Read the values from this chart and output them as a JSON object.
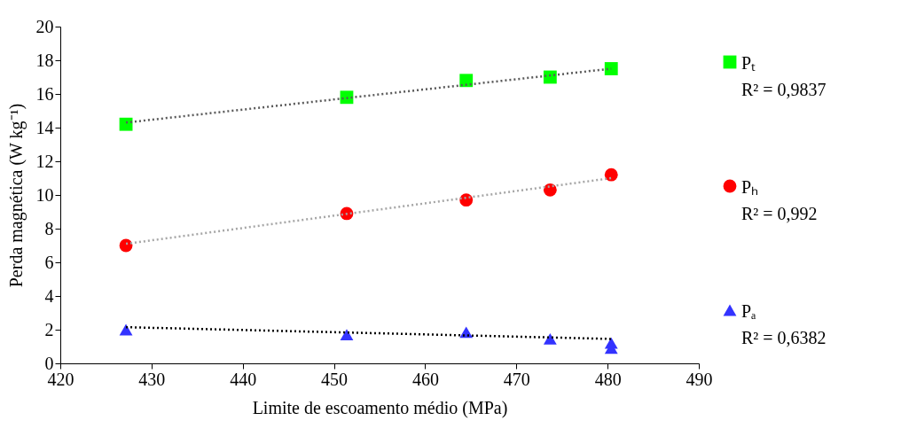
{
  "chart_data": {
    "type": "scatter",
    "xlabel": "Limite de escoamento médio (MPa)",
    "ylabel": "Perda magnética (W kg⁻¹)",
    "xlim": [
      420,
      490
    ],
    "xticks": [
      420,
      430,
      440,
      450,
      460,
      470,
      480,
      490
    ],
    "ylim": [
      0,
      20
    ],
    "yticks": [
      0,
      2,
      4,
      6,
      8,
      10,
      12,
      14,
      16,
      18,
      20
    ],
    "grid": false,
    "legend": "right",
    "series": [
      {
        "name": "Pₜ",
        "marker": "square",
        "color": "#00ff00",
        "x": [
          427.2,
          451.4,
          464.5,
          473.7,
          480.4
        ],
        "values": [
          14.2,
          15.8,
          16.8,
          17.0,
          17.5
        ]
      },
      {
        "name": "Pₕ",
        "marker": "circle",
        "color": "#ff0000",
        "x": [
          427.2,
          451.4,
          464.5,
          473.7,
          480.4
        ],
        "values": [
          7.0,
          8.9,
          9.7,
          10.3,
          11.2
        ]
      },
      {
        "name": "Pₐ",
        "marker": "triangle",
        "color": "#3333ff",
        "x": [
          427.2,
          451.4,
          464.5,
          473.7,
          480.4,
          480.4
        ],
        "values": [
          2.0,
          1.7,
          1.85,
          1.45,
          1.2,
          0.9
        ]
      },
      {
        "type": "line",
        "line_style": "dotted",
        "color": "#595959",
        "x": [
          427.2,
          480.4
        ],
        "values": [
          14.3,
          17.5
        ]
      },
      {
        "type": "line",
        "line_style": "dotted",
        "color": "#a6a6a6",
        "x": [
          427.2,
          480.4
        ],
        "values": [
          7.1,
          11.0
        ]
      },
      {
        "type": "line",
        "line_style": "dotted",
        "color": "#000000",
        "x": [
          427.2,
          480.4
        ],
        "values": [
          2.15,
          1.45
        ]
      }
    ],
    "annotations": [
      "R² = 0,9837",
      "R² = 0,992",
      "R² = 0,6382"
    ]
  }
}
